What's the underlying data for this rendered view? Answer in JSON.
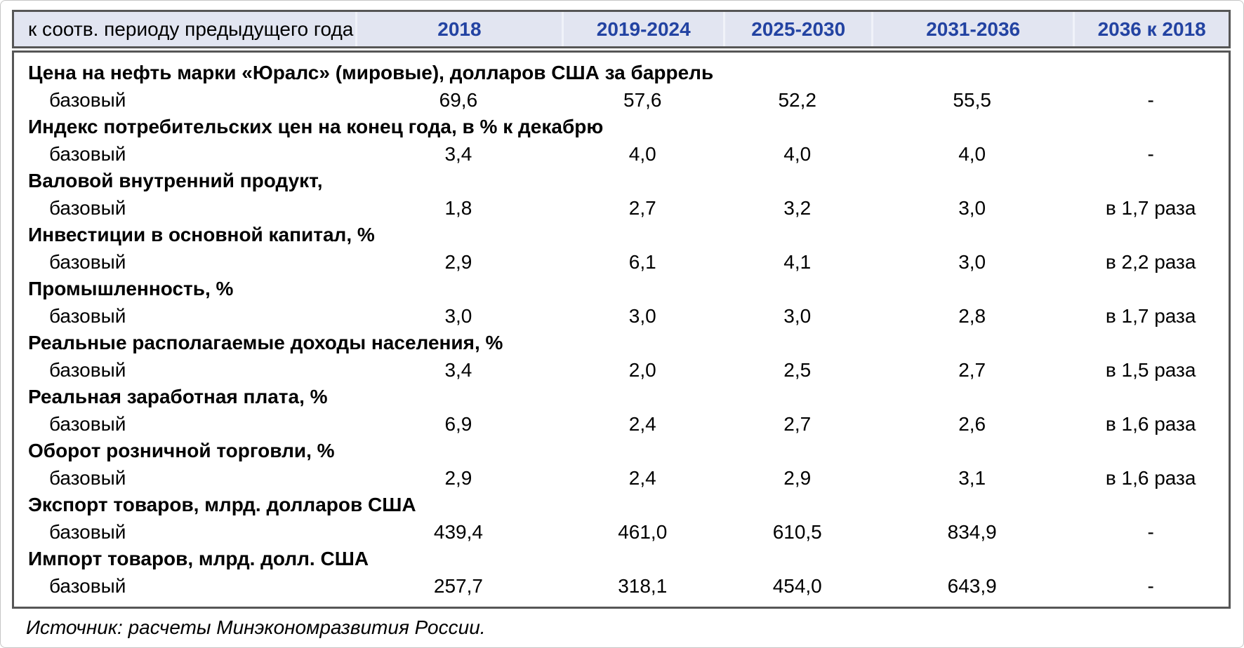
{
  "table": {
    "header": {
      "label": "к соотв. периоду предыдущего года",
      "columns": [
        "2018",
        "2019-2024",
        "2025-2030",
        "2031-2036",
        "2036 к 2018"
      ]
    },
    "rows": [
      {
        "category": "Цена на нефть марки «Юралс» (мировые), долларов США за баррель",
        "scenario": "базовый",
        "values": [
          "69,6",
          "57,6",
          "52,2",
          "55,5",
          "-"
        ]
      },
      {
        "category": "Индекс потребительских цен на конец года, в % к декабрю",
        "scenario": "базовый",
        "values": [
          "3,4",
          "4,0",
          "4,0",
          "4,0",
          "-"
        ]
      },
      {
        "category": "Валовой внутренний продукт,",
        "scenario": "базовый",
        "values": [
          "1,8",
          "2,7",
          "3,2",
          "3,0",
          "в 1,7 раза"
        ]
      },
      {
        "category": "Инвестиции в основной капитал, %",
        "scenario": "базовый",
        "values": [
          "2,9",
          "6,1",
          "4,1",
          "3,0",
          "в 2,2 раза"
        ]
      },
      {
        "category": "Промышленность, %",
        "scenario": "базовый",
        "values": [
          "3,0",
          "3,0",
          "3,0",
          "2,8",
          "в 1,7 раза"
        ]
      },
      {
        "category": "Реальные располагаемые доходы населения, %",
        "scenario": "базовый",
        "values": [
          "3,4",
          "2,0",
          "2,5",
          "2,7",
          "в 1,5 раза"
        ]
      },
      {
        "category": "Реальная заработная плата, %",
        "scenario": "базовый",
        "values": [
          "6,9",
          "2,4",
          "2,7",
          "2,6",
          "в 1,6 раза"
        ]
      },
      {
        "category": "Оборот розничной торговли, %",
        "scenario": "базовый",
        "values": [
          "2,9",
          "2,4",
          "2,9",
          "3,1",
          "в 1,6 раза"
        ]
      },
      {
        "category": "Экспорт товаров, млрд. долларов США",
        "scenario": "базовый",
        "values": [
          "439,4",
          "461,0",
          "610,5",
          "834,9",
          "-"
        ]
      },
      {
        "category": "Импорт товаров, млрд. долл. США",
        "scenario": "базовый",
        "values": [
          "257,7",
          "318,1",
          "454,0",
          "643,9",
          "-"
        ]
      }
    ],
    "source_note": "Источник: расчеты Минэкономразвития России."
  },
  "colors": {
    "header_background": "#e2e5f1",
    "header_year_text": "#2343a2",
    "table_border": "#565656",
    "header_divider": "#f0f2f9",
    "body_text": "#000000"
  }
}
